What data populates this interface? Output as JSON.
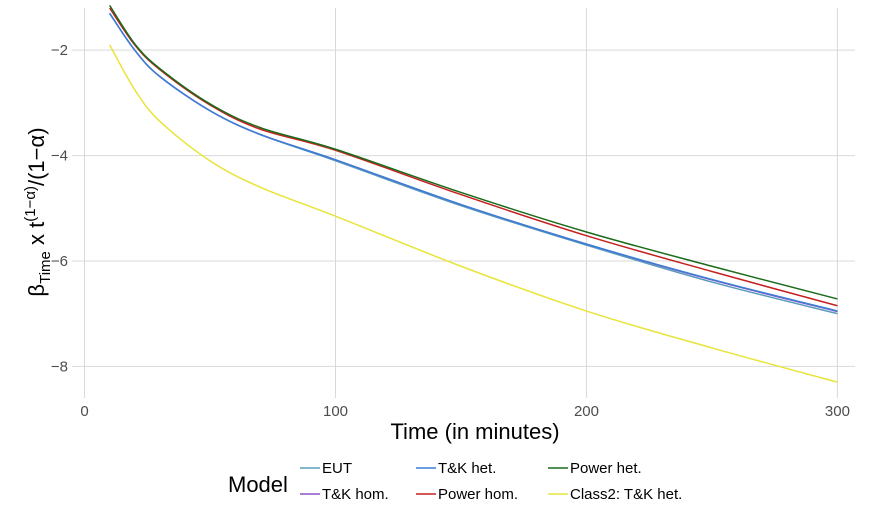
{
  "chart_data": {
    "type": "line",
    "xlabel": "Time (in minutes)",
    "ylabel": {
      "beta": "β",
      "beta_sub": "Time",
      "mid": " x t",
      "exp": "(1−α)",
      "tail": "/(1−α)"
    },
    "xlim": [
      -5,
      307
    ],
    "ylim": [
      -8.6,
      -1.2
    ],
    "x_ticks": [
      0,
      100,
      200,
      300
    ],
    "x_tick_labels": [
      "0",
      "100",
      "200",
      "300"
    ],
    "y_ticks": [
      -8,
      -6,
      -4,
      -2
    ],
    "y_tick_labels": [
      "−8",
      "−6",
      "−4",
      "−2"
    ],
    "grid": true,
    "legend": {
      "title": "Model",
      "position": "bottom",
      "entries": [
        "EUT",
        "T&K het.",
        "Power het.",
        "T&K hom.",
        "Power hom.",
        "Class2: T&K het."
      ]
    },
    "x": [
      10,
      20,
      30,
      50,
      70,
      100,
      150,
      200,
      250,
      300
    ],
    "series": [
      {
        "name": "EUT",
        "color": "#5b9bbd",
        "values": [
          -1.3,
          -2.0,
          -2.5,
          -3.15,
          -3.6,
          -4.1,
          -4.95,
          -5.7,
          -6.4,
          -7.0
        ]
      },
      {
        "name": "T&K het.",
        "color": "#3a7fd5",
        "values": [
          -1.3,
          -2.0,
          -2.5,
          -3.15,
          -3.6,
          -4.08,
          -4.93,
          -5.68,
          -6.35,
          -6.95
        ]
      },
      {
        "name": "Power het.",
        "color": "#1a6b1a",
        "values": [
          -1.15,
          -1.88,
          -2.35,
          -3.02,
          -3.47,
          -3.88,
          -4.7,
          -5.45,
          -6.1,
          -6.72
        ]
      },
      {
        "name": "T&K hom.",
        "color": "#8a55c9",
        "values": [
          -1.3,
          -2.0,
          -2.5,
          -3.15,
          -3.6,
          -4.08,
          -4.93,
          -5.68,
          -6.36,
          -6.96
        ]
      },
      {
        "name": "Power hom.",
        "color": "#c62020",
        "values": [
          -1.2,
          -1.9,
          -2.37,
          -3.04,
          -3.5,
          -3.9,
          -4.74,
          -5.52,
          -6.2,
          -6.85
        ]
      },
      {
        "name": "Class2: T&K het.",
        "color": "#e8e43a",
        "values": [
          -1.9,
          -2.75,
          -3.35,
          -4.1,
          -4.6,
          -5.15,
          -6.1,
          -6.95,
          -7.65,
          -8.3
        ]
      }
    ]
  }
}
